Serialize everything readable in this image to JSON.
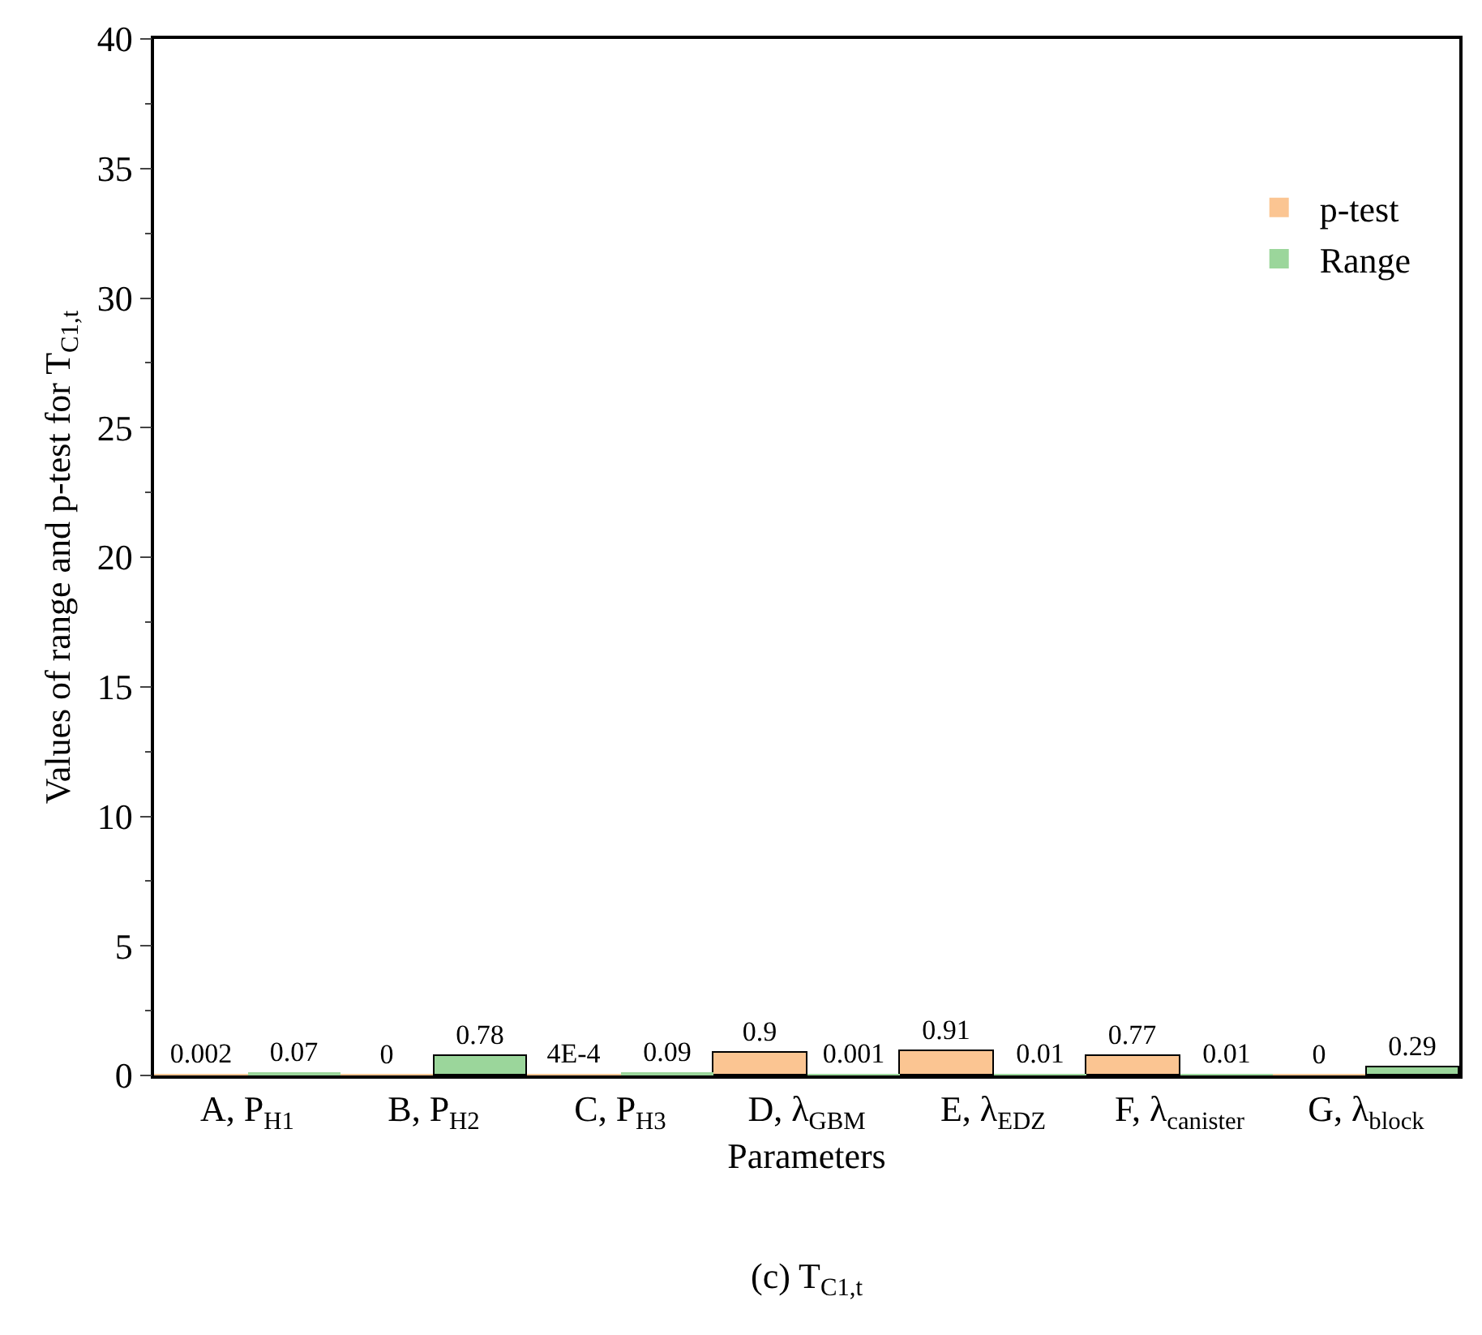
{
  "chart_data": {
    "type": "bar",
    "xlabel": "Parameters",
    "ylabel": "Values of range and p-test for T$_{C1,t}$",
    "categories": [
      "A, P$_{H1}$",
      "B, P$_{H2}$",
      "C, P$_{H3}$",
      "D, λ$_{GBM}$",
      "E, λ$_{EDZ}$",
      "F, λ$_{canister}$",
      "G, λ$_{block}$"
    ],
    "series": [
      {
        "name": "p-test",
        "color": "#fbc592",
        "values": [
          0.002,
          0,
          0.0004,
          0.9,
          0.91,
          0.77,
          0
        ],
        "value_labels": [
          "0.002",
          "0",
          "4E-4",
          "0.9",
          "0.91",
          "0.77",
          "0"
        ]
      },
      {
        "name": "Range",
        "color": "#9bd69b",
        "values": [
          0.07,
          0.78,
          0.09,
          0.001,
          0.01,
          0.01,
          0.29
        ],
        "value_labels": [
          "0.07",
          "0.78",
          "0.09",
          "0.001",
          "0.01",
          "0.01",
          "0.29"
        ]
      }
    ],
    "ylim": [
      0,
      40
    ],
    "yticks": [
      0,
      5,
      10,
      15,
      20,
      25,
      30,
      35,
      40
    ],
    "legend": "top right",
    "annotations": [
      "(c) T$_{C1,t}$"
    ]
  }
}
